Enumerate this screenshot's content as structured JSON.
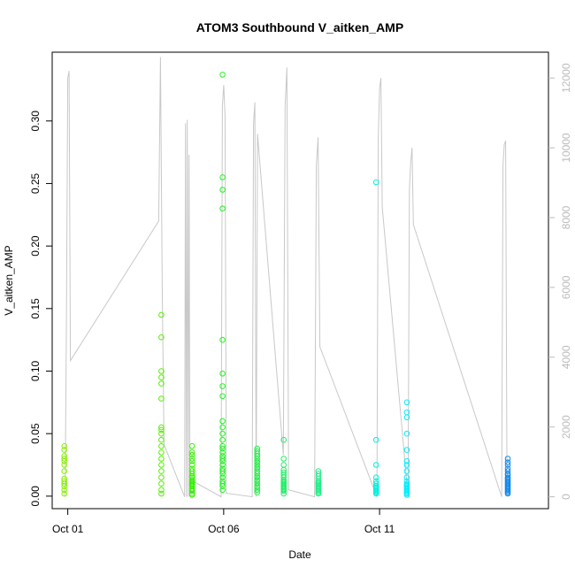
{
  "chart_data": {
    "type": "scatter",
    "title": "ATOM3 Southbound V_aitken_AMP",
    "xlabel": "Date",
    "ylabel": "V_aitken_AMP",
    "y2label": "",
    "xlim": [
      "2015-09-30T12:00",
      "2015-10-16T10:00"
    ],
    "ylim": [
      -0.01,
      0.355
    ],
    "y2lim": [
      -340,
      12740
    ],
    "x_ticks": [
      "Oct 01",
      "Oct 06",
      "Oct 11"
    ],
    "x_tick_dates": [
      "2015-10-01",
      "2015-10-06",
      "2015-10-11"
    ],
    "y_ticks": [
      "0.00",
      "0.05",
      "0.10",
      "0.15",
      "0.20",
      "0.25",
      "0.30"
    ],
    "y2_ticks": [
      "0",
      "2000",
      "4000",
      "6000",
      "8000",
      "10000",
      "12000"
    ],
    "grid": false,
    "legend": "none",
    "marker": "open-circle",
    "line_color": "#c8c8c8",
    "right_axis_color": "#bbbbbb",
    "clusters": [
      {
        "x": "2015-10-01T00:00",
        "color": "#88ee00",
        "values": [
          0.002,
          0.005,
          0.008,
          0.01,
          0.012,
          0.014,
          0.02,
          0.025,
          0.028,
          0.03,
          0.032,
          0.037,
          0.04
        ]
      },
      {
        "x": "2015-10-04T00:00",
        "color": "#55f000",
        "values": [
          0.002,
          0.005,
          0.01,
          0.015,
          0.02,
          0.025,
          0.03,
          0.035,
          0.04,
          0.045,
          0.05,
          0.053,
          0.055,
          0.078,
          0.09,
          0.095,
          0.1,
          0.127,
          0.145
        ]
      },
      {
        "x": "2015-10-04T21:00",
        "color": "#33f000",
        "values": [
          0.001,
          0.002,
          0.004,
          0.005,
          0.006,
          0.008,
          0.009,
          0.01,
          0.011,
          0.012,
          0.013,
          0.015,
          0.016,
          0.018,
          0.02,
          0.022,
          0.025,
          0.028,
          0.03,
          0.033,
          0.035,
          0.04
        ]
      },
      {
        "x": "2015-10-06T00:00",
        "color": "#22f020",
        "values": [
          0.005,
          0.008,
          0.01,
          0.012,
          0.015,
          0.018,
          0.02,
          0.022,
          0.025,
          0.028,
          0.03,
          0.032,
          0.035,
          0.038,
          0.04,
          0.045,
          0.05,
          0.055,
          0.06,
          0.08,
          0.088,
          0.098,
          0.125,
          0.23,
          0.245,
          0.255,
          0.337
        ]
      },
      {
        "x": "2015-10-07T00:00",
        "color": "#22ee44",
        "values": [
          0.003,
          0.005,
          0.007,
          0.008,
          0.01,
          0.012,
          0.013,
          0.015,
          0.016,
          0.018,
          0.02,
          0.022,
          0.023,
          0.025,
          0.027,
          0.028,
          0.03,
          0.032,
          0.034,
          0.036,
          0.038
        ]
      },
      {
        "x": "2015-10-08T00:00",
        "color": "#22ee66",
        "values": [
          0.002,
          0.004,
          0.005,
          0.006,
          0.007,
          0.008,
          0.009,
          0.01,
          0.011,
          0.012,
          0.013,
          0.015,
          0.017,
          0.019,
          0.021,
          0.025,
          0.03,
          0.045
        ]
      },
      {
        "x": "2015-10-09T00:00",
        "color": "#22ee88",
        "values": [
          0.002,
          0.003,
          0.004,
          0.005,
          0.006,
          0.007,
          0.008,
          0.009,
          0.01,
          0.011,
          0.012,
          0.014,
          0.016,
          0.018,
          0.02
        ]
      },
      {
        "x": "2015-10-11T00:00",
        "color": "#00f0dd",
        "values": [
          0.002,
          0.003,
          0.004,
          0.005,
          0.006,
          0.007,
          0.008,
          0.01,
          0.012,
          0.015,
          0.025,
          0.045,
          0.251
        ]
      },
      {
        "x": "2015-10-11T21:00",
        "color": "#00eeff",
        "values": [
          0.001,
          0.002,
          0.003,
          0.004,
          0.005,
          0.006,
          0.007,
          0.008,
          0.009,
          0.01,
          0.012,
          0.015,
          0.02,
          0.025,
          0.028,
          0.037,
          0.05,
          0.063,
          0.067,
          0.075
        ]
      },
      {
        "x": "2015-10-15T00:00",
        "color": "#1188ee",
        "values": [
          0.002,
          0.003,
          0.004,
          0.005,
          0.006,
          0.007,
          0.008,
          0.009,
          0.01,
          0.011,
          0.012,
          0.013,
          0.014,
          0.015,
          0.017,
          0.018,
          0.02,
          0.022,
          0.025,
          0.027,
          0.03
        ]
      }
    ],
    "secondary_series": [
      {
        "x": "2015-10-01T00:00",
        "values": [
          0,
          5000,
          12000,
          12200,
          3900
        ]
      },
      {
        "x": "2015-10-04T00:00",
        "values": [
          7900,
          12600,
          6000,
          1500
        ]
      },
      {
        "x": "2015-10-04T20:00",
        "values": [
          0,
          10700,
          0,
          10800,
          0,
          9800,
          500
        ]
      },
      {
        "x": "2015-10-06T00:00",
        "values": [
          0,
          11200,
          11800,
          10900,
          100
        ]
      },
      {
        "x": "2015-10-07T00:00",
        "values": [
          0,
          10700,
          11300,
          0,
          10400
        ]
      },
      {
        "x": "2015-10-08T00:00",
        "values": [
          1200,
          11200,
          12300,
          200
        ]
      },
      {
        "x": "2015-10-09T00:00",
        "values": [
          0,
          9500,
          10300,
          4300
        ]
      },
      {
        "x": "2015-10-11T00:00",
        "values": [
          0,
          10300,
          11700,
          12000,
          8300
        ]
      },
      {
        "x": "2015-10-12T00:00",
        "values": [
          0,
          8800,
          9600,
          10000,
          7800
        ]
      },
      {
        "x": "2015-10-15T00:00",
        "values": [
          0,
          9500,
          10100,
          10200,
          400
        ]
      }
    ]
  }
}
